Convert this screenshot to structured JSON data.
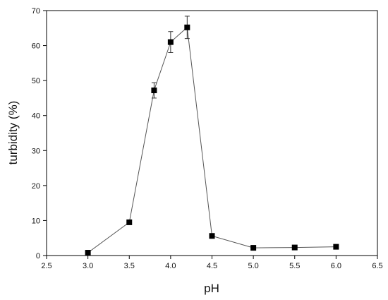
{
  "chart_data": {
    "type": "line",
    "title": "",
    "xlabel": "pH",
    "ylabel": "turbidity (%)",
    "xlim": [
      2.5,
      6.5
    ],
    "ylim": [
      0,
      70
    ],
    "x_ticks": [
      "2.5",
      "3.0",
      "3.5",
      "4.0",
      "4.5",
      "5.0",
      "5.5",
      "6.0",
      "6.5"
    ],
    "y_ticks": [
      "0",
      "10",
      "20",
      "30",
      "40",
      "50",
      "60",
      "70"
    ],
    "grid": false,
    "legend": "none",
    "series": [
      {
        "marker": "square",
        "color": "#000000",
        "x": [
          3.0,
          3.5,
          3.8,
          4.0,
          4.2,
          4.5,
          5.0,
          5.5,
          6.0
        ],
        "y": [
          0.8,
          9.5,
          47.2,
          61.0,
          65.2,
          5.6,
          2.2,
          2.3,
          2.5
        ],
        "error": [
          0,
          0,
          2.2,
          3.0,
          3.2,
          0,
          0,
          0,
          0
        ]
      }
    ]
  }
}
